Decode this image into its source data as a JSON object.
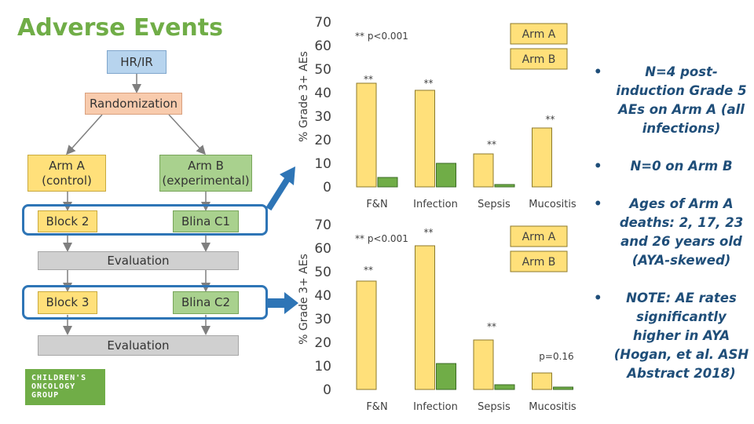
{
  "title": "Adverse Events",
  "flowchart": {
    "top": "HR/IR",
    "randomization": "Randomization",
    "arm_a": "Arm A\n(control)",
    "arm_b": "Arm B\n(experimental)",
    "block2": "Block 2",
    "blina_c1": "Blina C1",
    "evaluation1": "Evaluation",
    "block3": "Block 3",
    "blina_c2": "Blina C2",
    "evaluation2": "Evaluation"
  },
  "logo": [
    "CHILDREN'S",
    "ONCOLOGY",
    "GROUP"
  ],
  "bullets": [
    "N=4 post-induction Grade 5 AEs on Arm A (all infections)",
    "N=0 on Arm B",
    "Ages of Arm A deaths: 2, 17, 23 and 26 years old (AYA-skewed)",
    "NOTE: AE rates significantly higher in AYA (Hogan, et al. ASH Abstract 2018)"
  ],
  "colors": {
    "title": "#70ad47",
    "arm_a": "#ffe07a",
    "arm_b": "#70ad47",
    "highlight": "#2e75b6",
    "bullets": "#1f4e79"
  },
  "chart_data": [
    {
      "type": "bar",
      "categories": [
        "F&N",
        "Infection",
        "Sepsis",
        "Mucositis"
      ],
      "series": [
        {
          "name": "Arm A",
          "values": [
            44,
            41,
            14,
            25
          ]
        },
        {
          "name": "Arm B",
          "values": [
            4,
            10,
            1,
            0
          ]
        }
      ],
      "ylabel": "% Grade 3+ AEs",
      "ylim": [
        0,
        70
      ],
      "yticks": [
        0,
        10,
        20,
        30,
        40,
        50,
        60,
        70
      ],
      "annotations": [
        "**",
        "**",
        "**",
        "**"
      ],
      "note": "** p<0.001",
      "legend": "top-right"
    },
    {
      "type": "bar",
      "categories": [
        "F&N",
        "Infection",
        "Sepsis",
        "Mucositis"
      ],
      "series": [
        {
          "name": "Arm A",
          "values": [
            46,
            61,
            21,
            7
          ]
        },
        {
          "name": "Arm B",
          "values": [
            0,
            11,
            2,
            1
          ]
        }
      ],
      "ylabel": "% Grade 3+ AEs",
      "ylim": [
        0,
        70
      ],
      "yticks": [
        0,
        10,
        20,
        30,
        40,
        50,
        60,
        70
      ],
      "annotations": [
        "**",
        "**",
        "**",
        "p=0.16"
      ],
      "note": "** p<0.001",
      "legend": "top-right"
    }
  ]
}
